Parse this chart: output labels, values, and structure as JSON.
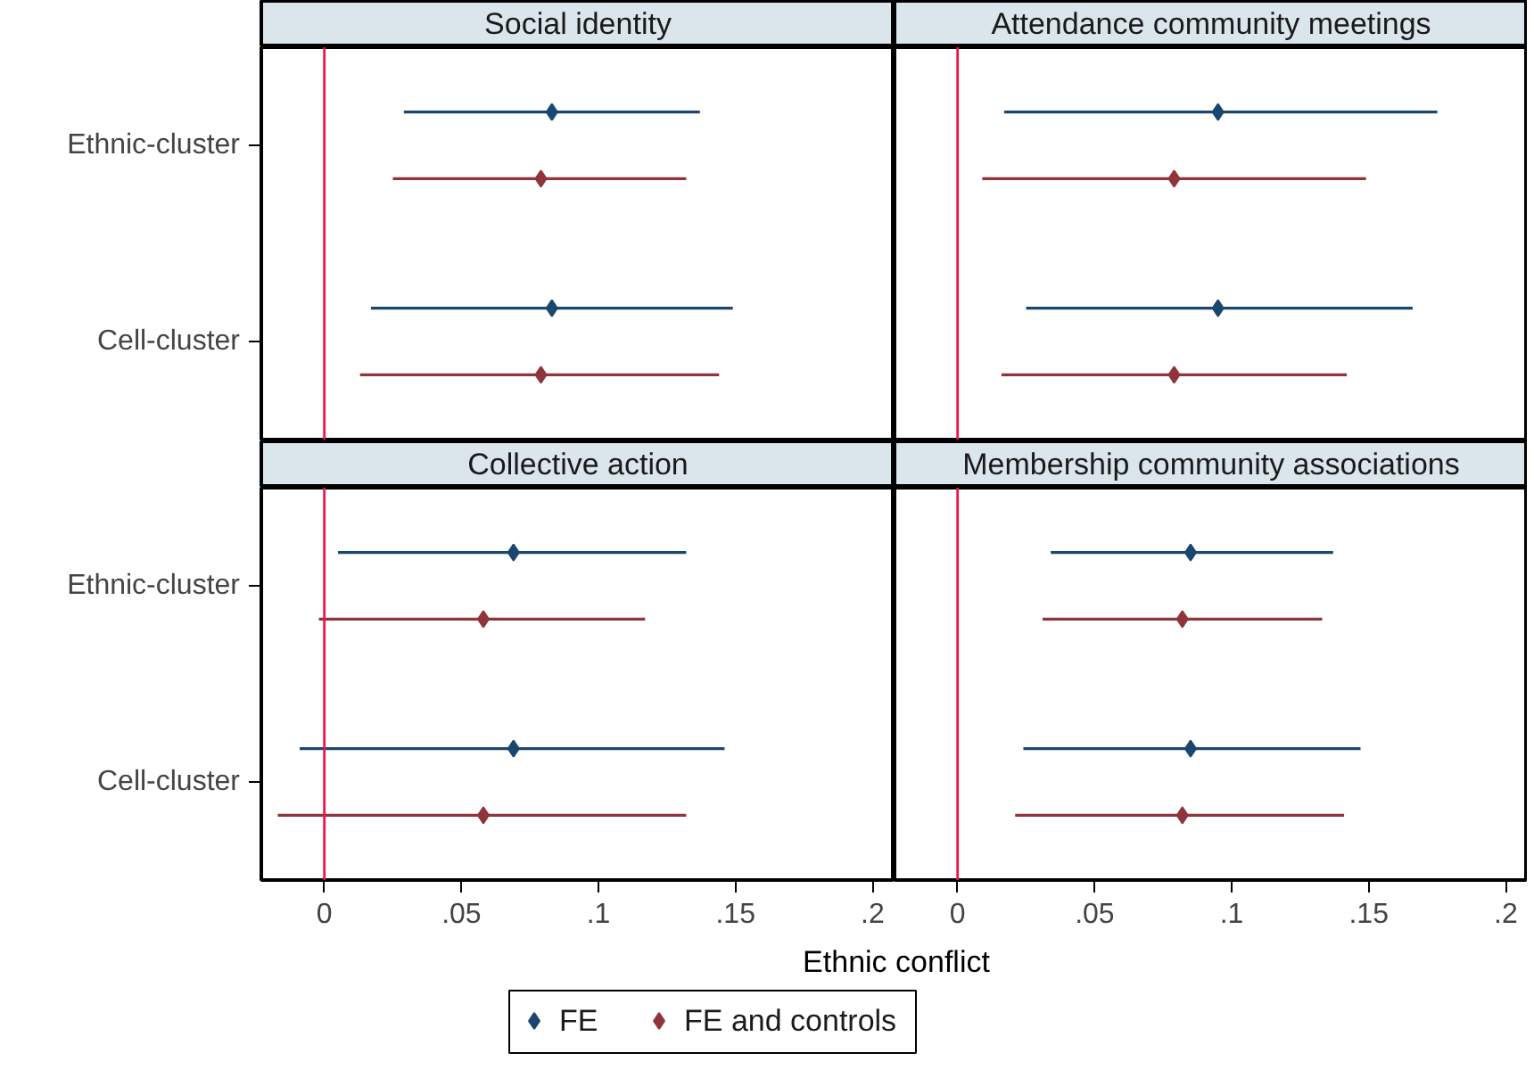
{
  "chart_data": [
    {
      "type": "scatter",
      "orientation": "horizontal",
      "title": "Social identity",
      "categories": [
        "Ethnic-cluster",
        "Cell-cluster"
      ],
      "xlim": [
        -0.023,
        0.208
      ],
      "tick_labels": "y",
      "marker": "diamond",
      "grid": false,
      "legend": "bottom",
      "ref_lines": [
        {
          "axis": "x",
          "value": 0,
          "color": "#e8174a"
        }
      ],
      "series": [
        {
          "name": "FE",
          "color": "#1a476f",
          "values": [
            0.083,
            0.083
          ],
          "errors": [
            [
              0.029,
              0.137
            ],
            [
              0.017,
              0.149
            ]
          ]
        },
        {
          "name": "FE and controls",
          "color": "#90353b",
          "values": [
            0.079,
            0.079
          ],
          "errors": [
            [
              0.025,
              0.132
            ],
            [
              0.013,
              0.144
            ]
          ]
        }
      ]
    },
    {
      "type": "scatter",
      "orientation": "horizontal",
      "title": "Attendance community meetings",
      "categories": [
        null,
        null
      ],
      "xlim": [
        -0.023,
        0.208
      ],
      "tick_labels": false,
      "marker": "diamond",
      "grid": false,
      "ref_lines": [
        {
          "axis": "x",
          "value": 0,
          "color": "#e8174a"
        }
      ],
      "series": [
        {
          "color": "#1a476f",
          "values": [
            0.095,
            0.095
          ],
          "errors": [
            [
              0.017,
              0.175
            ],
            [
              0.025,
              0.166
            ]
          ]
        },
        {
          "color": "#90353b",
          "values": [
            0.079,
            0.079
          ],
          "errors": [
            [
              0.009,
              0.149
            ],
            [
              0.016,
              0.142
            ]
          ]
        }
      ]
    },
    {
      "type": "scatter",
      "orientation": "horizontal",
      "title": "Collective action",
      "categories": [
        "Ethnic-cluster",
        "Cell-cluster"
      ],
      "xlim": [
        -0.023,
        0.208
      ],
      "xticks": [
        {
          "value": 0,
          "label": "0"
        },
        {
          "value": 0.05,
          "label": ".05"
        },
        {
          "value": 0.1,
          "label": ".1"
        },
        {
          "value": 0.15,
          "label": ".15"
        },
        {
          "value": 0.2,
          "label": ".2"
        }
      ],
      "marker": "diamond",
      "grid": false,
      "xlabel": "Ethnic conflict",
      "ref_lines": [
        {
          "axis": "x",
          "value": 0,
          "color": "#e8174a"
        }
      ],
      "series": [
        {
          "color": "#1a476f",
          "values": [
            0.069,
            0.069
          ],
          "errors": [
            [
              0.005,
              0.132
            ],
            [
              -0.009,
              0.146
            ]
          ]
        },
        {
          "color": "#90353b",
          "values": [
            0.058,
            0.058
          ],
          "errors": [
            [
              -0.002,
              0.117
            ],
            [
              -0.017,
              0.132
            ]
          ]
        }
      ]
    },
    {
      "type": "scatter",
      "orientation": "horizontal",
      "title": "Membership community associations",
      "categories": [
        null,
        null
      ],
      "xlim": [
        -0.023,
        0.208
      ],
      "xticks": [
        {
          "value": 0,
          "label": "0"
        },
        {
          "value": 0.05,
          "label": ".05"
        },
        {
          "value": 0.1,
          "label": ".1"
        },
        {
          "value": 0.15,
          "label": ".15"
        },
        {
          "value": 0.2,
          "label": ".2"
        }
      ],
      "tick_labels": "x",
      "marker": "diamond",
      "grid": false,
      "ref_lines": [
        {
          "axis": "x",
          "value": 0,
          "color": "#e8174a"
        }
      ],
      "series": [
        {
          "color": "#1a476f",
          "values": [
            0.085,
            0.085
          ],
          "errors": [
            [
              0.034,
              0.137
            ],
            [
              0.024,
              0.147
            ]
          ]
        },
        {
          "color": "#90353b",
          "values": [
            0.082,
            0.082
          ],
          "errors": [
            [
              0.031,
              0.133
            ],
            [
              0.021,
              0.141
            ]
          ]
        }
      ]
    }
  ]
}
